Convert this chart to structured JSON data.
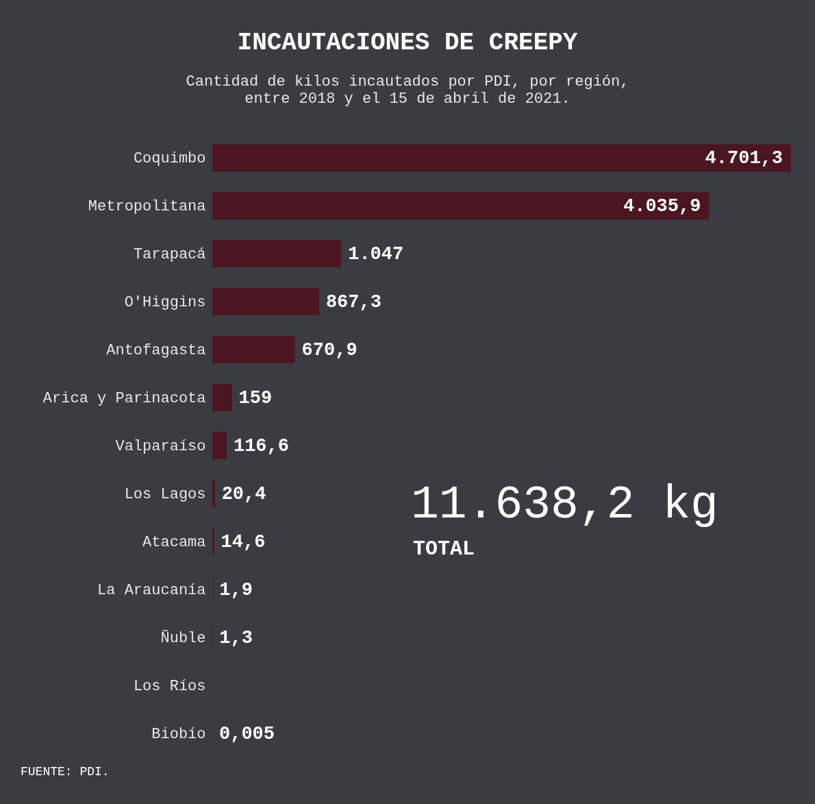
{
  "chart_data": {
    "type": "bar",
    "orientation": "horizontal",
    "title": "INCAUTACIONES DE CREEPY",
    "subtitle": "Cantidad de kilos incautados por PDI, por región, entre 2018 y el 15 de abril de 2021.",
    "categories": [
      "Coquimbo",
      "Metropolitana",
      "Tarapacá",
      "O'Higgins",
      "Antofagasta",
      "Arica y Parinacota",
      "Valparaíso",
      "Los Lagos",
      "Atacama",
      "La Araucanía",
      "Ñuble",
      "Los Ríos",
      "Biobío"
    ],
    "values": [
      4701.3,
      4035.9,
      1047,
      867.3,
      670.9,
      159,
      116.6,
      20.4,
      14.6,
      1.9,
      1.3,
      0,
      0.005
    ],
    "value_labels": [
      "4.701,3",
      "4.035,9",
      "1.047",
      "867,3",
      "670,9",
      "159",
      "116,6",
      "20,4",
      "14,6",
      "1,9",
      "1,3",
      null,
      "0,005"
    ],
    "color": "#4b1621",
    "annotations": [
      "11.638,2 kg",
      "TOTAL",
      "FUENTE: PDI."
    ]
  }
}
